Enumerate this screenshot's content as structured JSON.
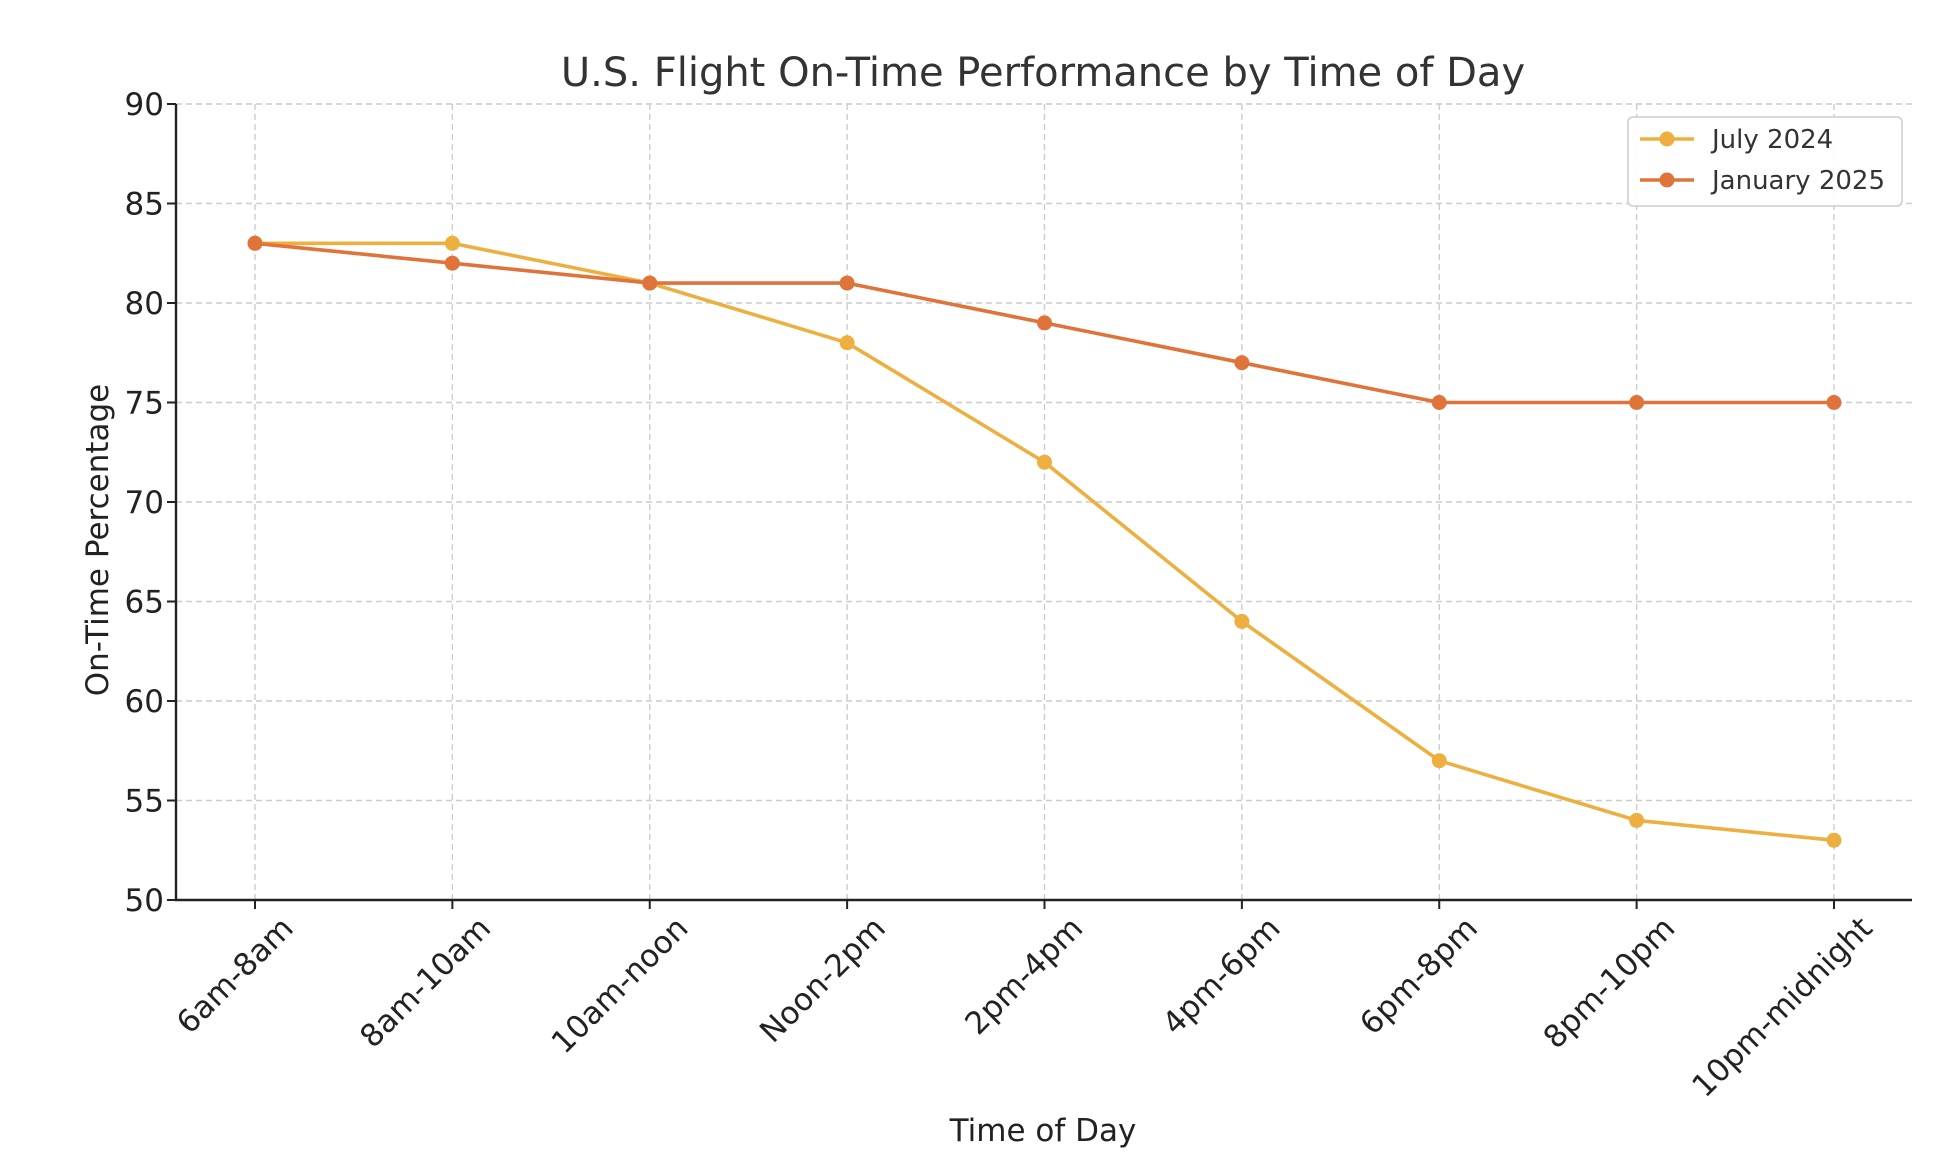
{
  "chart_data": {
    "type": "line",
    "title": "U.S. Flight On-Time Performance by Time of Day",
    "xlabel": "Time of Day",
    "ylabel": "On-Time Percentage",
    "categories": [
      "6am-8am",
      "8am-10am",
      "10am-noon",
      "Noon-2pm",
      "2pm-4pm",
      "4pm-6pm",
      "6pm-8pm",
      "8pm-10pm",
      "10pm-midnight"
    ],
    "ylim": [
      50,
      90
    ],
    "yticks": [
      50,
      55,
      60,
      65,
      70,
      75,
      80,
      85,
      90
    ],
    "grid": true,
    "legend_position": "top-right",
    "series": [
      {
        "name": "July 2024",
        "color": "#EDB040",
        "values": [
          83,
          83,
          81,
          78,
          72,
          64,
          57,
          54,
          53
        ]
      },
      {
        "name": "January 2025",
        "color": "#E0733A",
        "values": [
          83,
          82,
          81,
          81,
          79,
          77,
          75,
          75,
          75
        ]
      }
    ]
  }
}
